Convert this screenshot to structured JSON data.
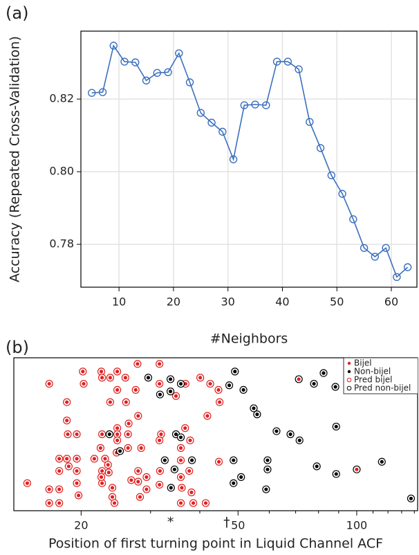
{
  "chart_data": [
    {
      "type": "line",
      "panel_label": "(a)",
      "x_label": "#Neighbors",
      "y_label": "Accuracy (Repeated Cross-Validation)",
      "x": [
        5,
        7,
        9,
        11,
        13,
        15,
        17,
        19,
        21,
        23,
        25,
        27,
        29,
        31,
        33,
        35,
        37,
        39,
        41,
        43,
        45,
        47,
        49,
        51,
        53,
        55,
        57,
        59,
        61,
        63
      ],
      "values": [
        0.8217,
        0.8219,
        0.8347,
        0.8303,
        0.8301,
        0.8251,
        0.8272,
        0.8274,
        0.8326,
        0.8246,
        0.8162,
        0.8135,
        0.811,
        0.8034,
        0.8183,
        0.8185,
        0.8183,
        0.8303,
        0.8303,
        0.8282,
        0.8137,
        0.8065,
        0.799,
        0.7939,
        0.7869,
        0.779,
        0.7766,
        0.779,
        0.771,
        0.7737
      ],
      "color": "#3a6fbf",
      "grid": true,
      "xlim": [
        3,
        64.7
      ],
      "xticks": [
        10,
        20,
        30,
        40,
        50,
        60
      ],
      "ylim": [
        0.7682,
        0.8387
      ],
      "yticks": [
        0.78,
        {
          "value": 0.8,
          "label": "0.80"
        },
        0.82
      ]
    },
    {
      "type": "scatter",
      "panel_label": "(b)",
      "x_label": "Position of first turning point in Liquid Channel ACF",
      "xlog": true,
      "xlim": [
        13.5,
        142.7
      ],
      "xticks": [
        20,
        50,
        100
      ],
      "minor_xticks": [
        30,
        40,
        60,
        70,
        80,
        90,
        110,
        120,
        130,
        140
      ],
      "ylim": [
        0,
        1
      ],
      "legend": "top-right",
      "annotations": [
        {
          "text": "*",
          "x": 33.7
        },
        {
          "text": "†",
          "x": 46.8
        }
      ],
      "pred_classes": [
        {
          "name": "Pred bijel",
          "color": "#e02020"
        },
        {
          "name": "Pred non-bijel",
          "color": "#000000"
        }
      ],
      "series": [
        {
          "name": "Bijel",
          "color": "#e02020",
          "x": [
            14.6,
            16.6,
            16.6,
            16.6,
            17.6,
            17.6,
            17.6,
            17.6,
            18.4,
            18.4,
            18.4,
            18.6,
            18.5,
            19.5,
            19.5,
            19.5,
            19.5,
            19.7,
            21.6,
            22.4,
            22.6,
            22.6,
            22.6,
            23.0,
            20.2,
            20.3,
            22.5,
            22.6,
            23.7,
            23.7,
            24.7,
            24.7,
            25.9,
            26.0,
            27.8,
            27.5,
            27.9,
            26.4,
            24.7,
            24.7,
            24.7,
            24.6,
            26.3,
            26.3,
            23.4,
            23.5,
            22.5,
            24.0,
            24.0,
            24.3,
            27.9,
            27.9,
            29.3,
            29.3,
            28.2,
            31.6,
            31.6,
            31.9,
            31.6,
            31.7,
            31.6,
            34.8,
            36.8,
            36.7,
            37.8,
            35.8,
            35.8,
            35.8,
            36.0,
            35.8,
            37.6,
            38.1,
            38.5,
            41.4,
            41.8,
            40.1,
            42.5,
            44.6,
            44.9,
            44.7,
            28.4,
            26.8,
            71.3,
            100
          ],
          "values": [
            0.18,
            0.14,
            0.05,
            0.83,
            0.34,
            0.26,
            0.14,
            0.05,
            0.71,
            0.59,
            0.34,
            0.29,
            0.5,
            0.5,
            0.34,
            0.26,
            0.18,
            0.1,
            0.34,
            0.41,
            0.5,
            0.26,
            0.18,
            0.34,
            0.91,
            0.83,
            0.91,
            0.87,
            0.87,
            0.71,
            0.91,
            0.79,
            0.87,
            0.71,
            0.96,
            0.79,
            0.62,
            0.57,
            0.54,
            0.5,
            0.46,
            0.38,
            0.5,
            0.41,
            0.3,
            0.25,
            0.22,
            0.15,
            0.09,
            0.05,
            0.26,
            0.19,
            0.22,
            0.14,
            0.09,
            0.96,
            0.83,
            0.5,
            0.46,
            0.26,
            0.17,
            0.75,
            0.83,
            0.54,
            0.46,
            0.41,
            0.33,
            0.22,
            0.15,
            0.05,
            0.26,
            0.12,
            0.05,
            0.05,
            0.62,
            0.87,
            0.83,
            0.79,
            0.71,
            0.32,
            0.41,
            0.2,
            0.86,
            0.27
          ],
          "pred": [
            0,
            0,
            0,
            0,
            0,
            0,
            0,
            0,
            0,
            0,
            0,
            0,
            0,
            0,
            0,
            0,
            0,
            0,
            0,
            0,
            0,
            0,
            0,
            0,
            0,
            0,
            0,
            0,
            0,
            0,
            0,
            0,
            0,
            0,
            0,
            0,
            0,
            0,
            0,
            0,
            0,
            0,
            0,
            0,
            0,
            0,
            0,
            0,
            0,
            0,
            0,
            0,
            0,
            0,
            0,
            0,
            0,
            0,
            0,
            0,
            0,
            0,
            0,
            0,
            0,
            0,
            0,
            0,
            0,
            0,
            0,
            0,
            0,
            0,
            0,
            0,
            0,
            0,
            0,
            0,
            0,
            0,
            1,
            1
          ]
        },
        {
          "name": "Non-bijel",
          "color": "#000000",
          "x": [
            29.6,
            33.7,
            33.7,
            31.7,
            35.8,
            23.6,
            25.1,
            34.8,
            35.8,
            32.6,
            34.5,
            33.8,
            38.2,
            49.1,
            47.5,
            51.6,
            54.8,
            55.9,
            62.6,
            67.9,
            71.6,
            82.4,
            77.9,
            88.3,
            88.7,
            48.7,
            48.7,
            50.9,
            59.4,
            59.4,
            58.9,
            79.2,
            88.7,
            115.8,
            137.3
          ],
          "values": [
            0.87,
            0.86,
            0.78,
            0.76,
            0.83,
            0.5,
            0.39,
            0.5,
            0.48,
            0.33,
            0.27,
            0.15,
            0.33,
            0.91,
            0.82,
            0.79,
            0.67,
            0.63,
            0.52,
            0.5,
            0.46,
            0.9,
            0.83,
            0.81,
            0.55,
            0.33,
            0.18,
            0.22,
            0.33,
            0.27,
            0.14,
            0.29,
            0.24,
            0.32,
            0.08
          ],
          "pred": [
            1,
            1,
            1,
            1,
            1,
            1,
            1,
            1,
            1,
            1,
            1,
            1,
            1,
            1,
            1,
            1,
            1,
            1,
            1,
            1,
            1,
            1,
            1,
            1,
            1,
            1,
            1,
            1,
            1,
            1,
            1,
            1,
            1,
            1,
            1
          ]
        }
      ]
    }
  ]
}
